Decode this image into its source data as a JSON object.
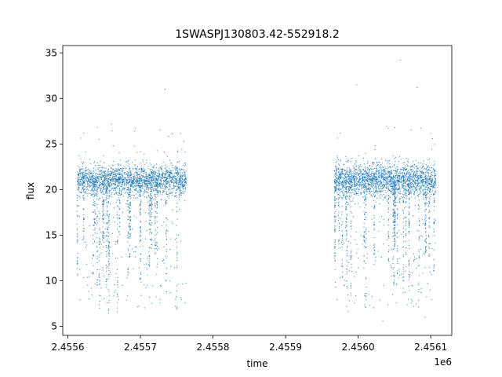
{
  "chart_data": {
    "type": "scatter",
    "title": "1SWASPJ130803.42-552918.2",
    "xlabel": "time",
    "ylabel": "flux",
    "x_offset_label": "1e6",
    "xlim": [
      2455593,
      2456129
    ],
    "ylim": [
      4.0,
      35.8
    ],
    "x_ticks": [
      2455600,
      2455700,
      2455800,
      2455900,
      2456000,
      2456100
    ],
    "x_tick_labels": [
      "2.4556",
      "2.4557",
      "2.4558",
      "2.4559",
      "2.4560",
      "2.4561"
    ],
    "y_ticks": [
      5,
      10,
      15,
      20,
      25,
      30,
      35
    ],
    "y_tick_labels": [
      "5",
      "10",
      "15",
      "20",
      "25",
      "30",
      "35"
    ],
    "grid": false,
    "color": "#1f77b4",
    "series": [
      {
        "segments": [
          {
            "x_start": 2455613,
            "x_end": 2455763,
            "median_flux": 21.0,
            "scatter": 0.8
          },
          {
            "x_start": 2455967,
            "x_end": 2456107,
            "median_flux": 21.0,
            "scatter": 0.9
          }
        ],
        "points": [
          [
            2455620,
            20.6
          ],
          [
            2455624,
            21.8
          ],
          [
            2455630,
            16.0
          ],
          [
            2455636,
            21.2
          ],
          [
            2455641,
            11.2
          ],
          [
            2455648,
            22.4
          ],
          [
            2455655,
            21.5
          ],
          [
            2455660,
            27.2
          ],
          [
            2455666,
            12.5
          ],
          [
            2455673,
            21.3
          ],
          [
            2455680,
            22.3
          ],
          [
            2455686,
            14.8
          ],
          [
            2455692,
            21.4
          ],
          [
            2455698,
            19.3
          ],
          [
            2455705,
            21.0
          ],
          [
            2455712,
            21.6
          ],
          [
            2455716,
            7.5
          ],
          [
            2455722,
            21.0
          ],
          [
            2455728,
            20.2
          ],
          [
            2455734,
            31.0
          ],
          [
            2455741,
            21.9
          ],
          [
            2455748,
            7.2
          ],
          [
            2455752,
            9.6
          ],
          [
            2455756,
            20.5
          ],
          [
            2455760,
            25.3
          ],
          [
            2455970,
            20.8
          ],
          [
            2455975,
            13.6
          ],
          [
            2455981,
            21.7
          ],
          [
            2455986,
            6.6
          ],
          [
            2455992,
            21.3
          ],
          [
            2455998,
            31.5
          ],
          [
            2456004,
            22.0
          ],
          [
            2456010,
            8.6
          ],
          [
            2456016,
            21.1
          ],
          [
            2456022,
            16.1
          ],
          [
            2456028,
            20.9
          ],
          [
            2456034,
            5.6
          ],
          [
            2456040,
            21.6
          ],
          [
            2456046,
            10.5
          ],
          [
            2456052,
            20.4
          ],
          [
            2456058,
            34.2
          ],
          [
            2456064,
            21.8
          ],
          [
            2456070,
            11.8
          ],
          [
            2456076,
            19.8
          ],
          [
            2456081,
            31.2
          ],
          [
            2456087,
            22.3
          ],
          [
            2456092,
            6.0
          ],
          [
            2456097,
            20.6
          ],
          [
            2456102,
            13.5
          ],
          [
            2456106,
            20.2
          ]
        ]
      }
    ]
  }
}
